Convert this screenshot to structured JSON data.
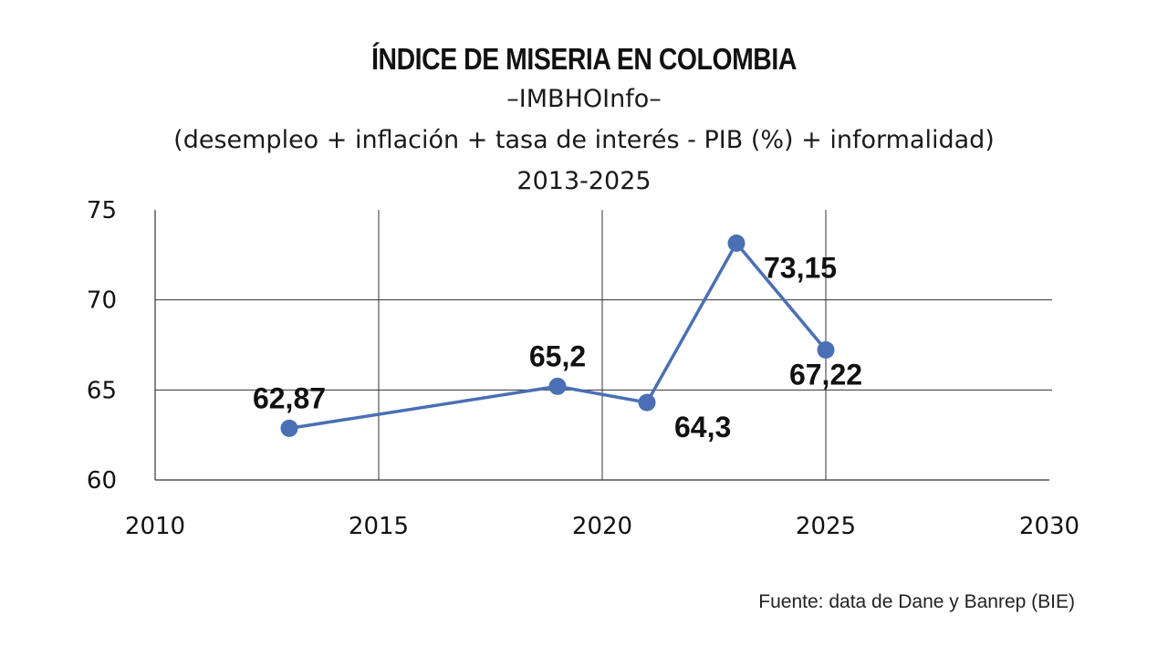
{
  "chart_data": {
    "type": "line",
    "title": "ÍNDICE DE MISERIA EN COLOMBIA",
    "subtitle_lines": [
      "–IMBHOInfo–",
      "(desempleo + inflación + tasa de interés - PIB (%) + informalidad)",
      "2013-2025"
    ],
    "xlim": [
      2010,
      2030
    ],
    "ylim": [
      60,
      75
    ],
    "x_ticks": [
      2010,
      2015,
      2020,
      2025,
      2030
    ],
    "y_ticks": [
      60,
      65,
      70,
      75
    ],
    "grid": true,
    "line_color": "#4a6fb5",
    "series": [
      {
        "x": [
          2013,
          2019,
          2021,
          2023,
          2025
        ],
        "y": [
          62.87,
          65.2,
          64.3,
          73.15,
          67.22
        ]
      }
    ],
    "data_labels": [
      {
        "x": 2013,
        "text": "62,87",
        "place": "above"
      },
      {
        "x": 2019,
        "text": "65,2",
        "place": "above"
      },
      {
        "x": 2021,
        "text": "64,3",
        "place": "below-right"
      },
      {
        "x": 2023,
        "text": "73,15",
        "place": "below-right"
      },
      {
        "x": 2025,
        "text": "67,22",
        "place": "below"
      }
    ],
    "source": "Fuente: data de Dane y Banrep (BIE)"
  }
}
